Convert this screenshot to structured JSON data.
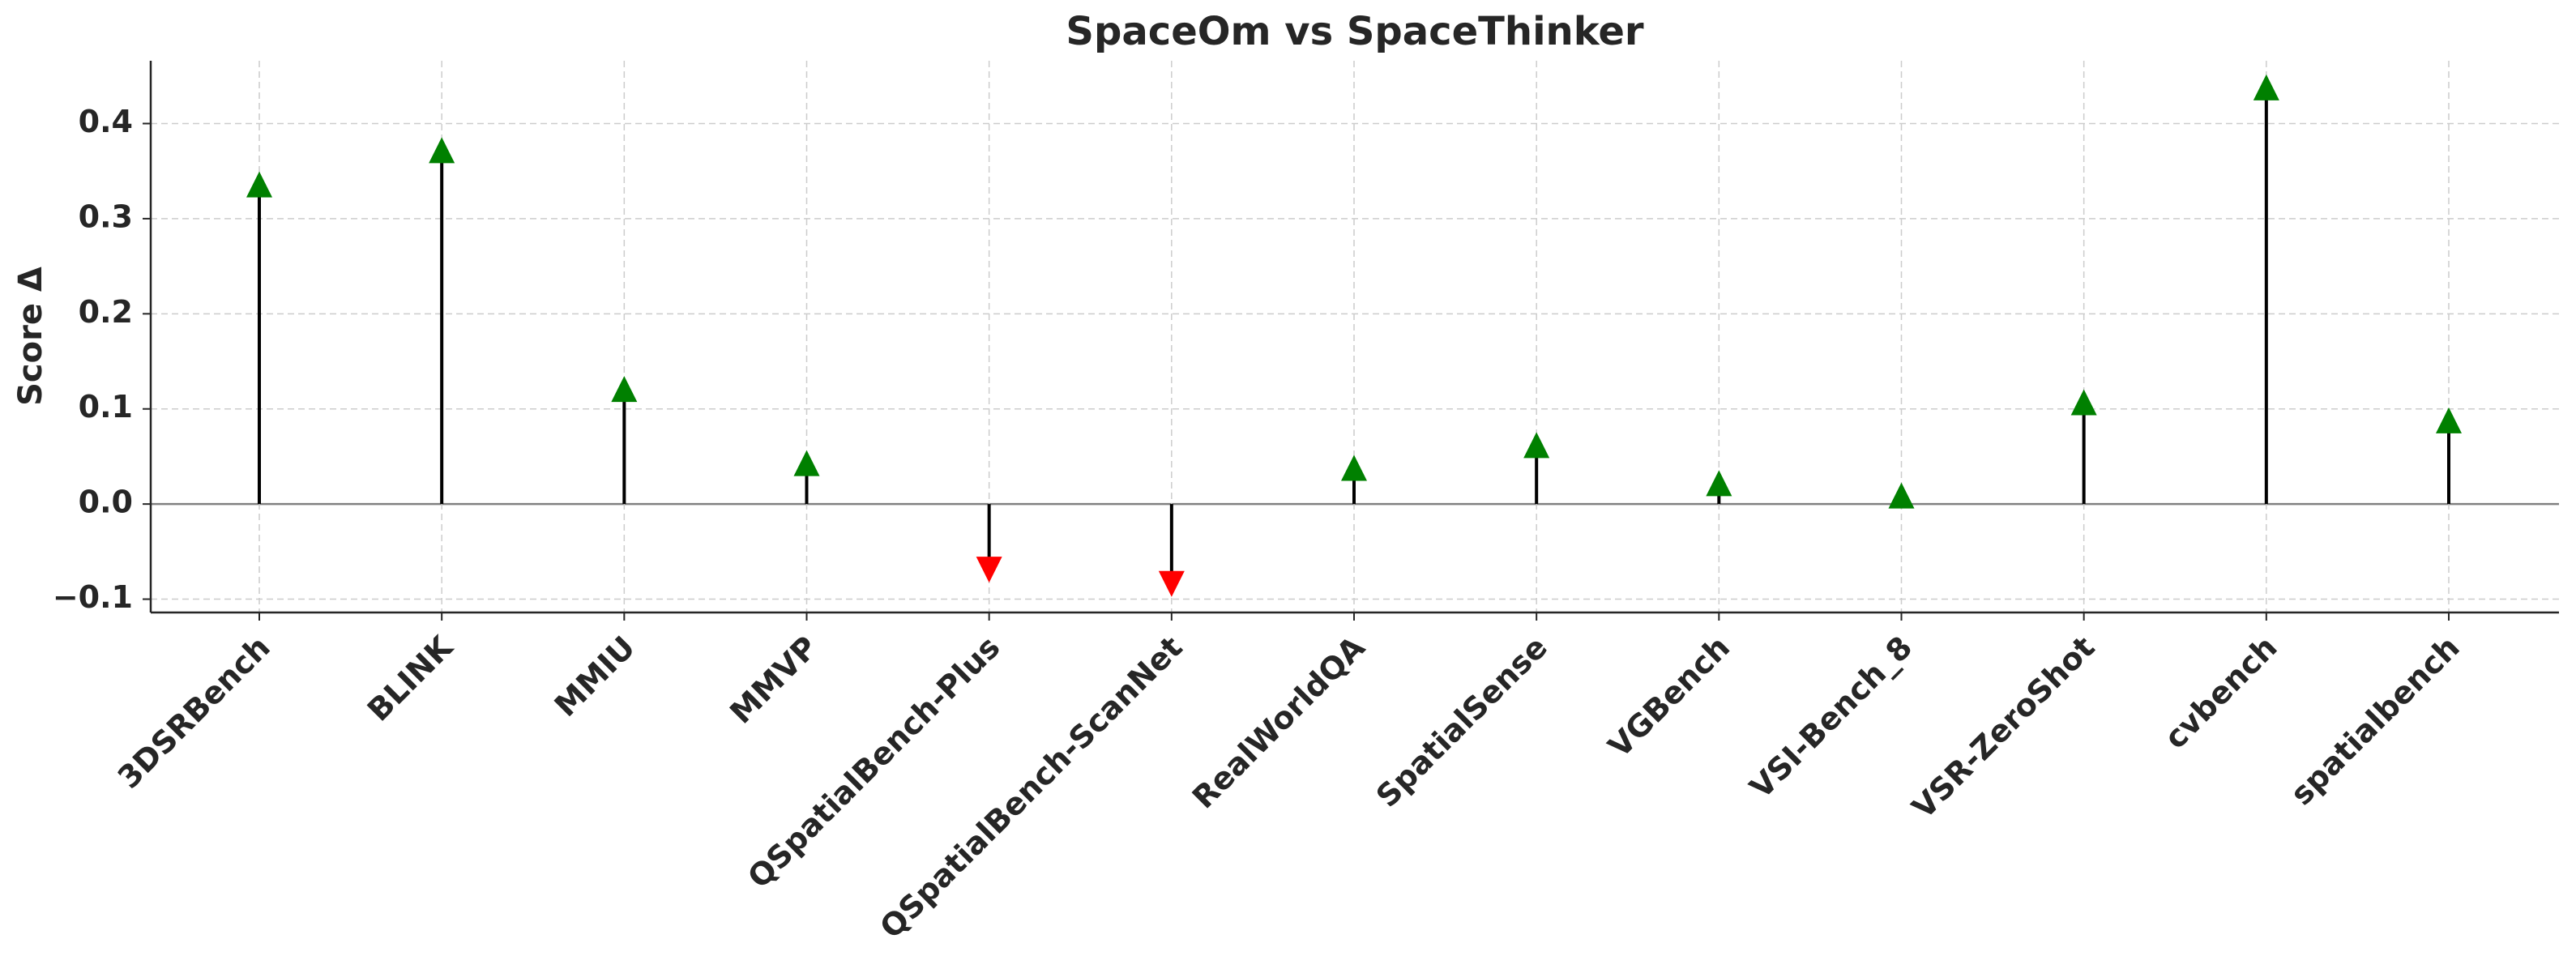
{
  "chart_data": {
    "type": "arrow-stem",
    "title": "SpaceOm vs SpaceThinker",
    "ylabel": "Score Δ",
    "categories": [
      "3DSRBench",
      "BLINK",
      "MMIU",
      "MMVP",
      "QSpatialBench-Plus",
      "QSpatialBench-ScanNet",
      "RealWorldQA",
      "SpatialSense",
      "VGBench",
      "VSI-Bench_8",
      "VSR-ZeroShot",
      "cvbench",
      "spatialbench"
    ],
    "values": [
      0.336,
      0.372,
      0.121,
      0.043,
      -0.069,
      -0.084,
      0.038,
      0.062,
      0.022,
      0.009,
      0.107,
      0.438,
      0.088
    ],
    "color_up": "#008000",
    "color_down": "#ff0000",
    "ylim": [
      -0.114,
      0.466
    ],
    "yticks": [
      {
        "value": -0.1,
        "label": "−0.1"
      },
      {
        "value": 0,
        "label": "0.0"
      },
      0.1,
      0.2,
      0.3,
      0.4
    ],
    "grid": true
  }
}
